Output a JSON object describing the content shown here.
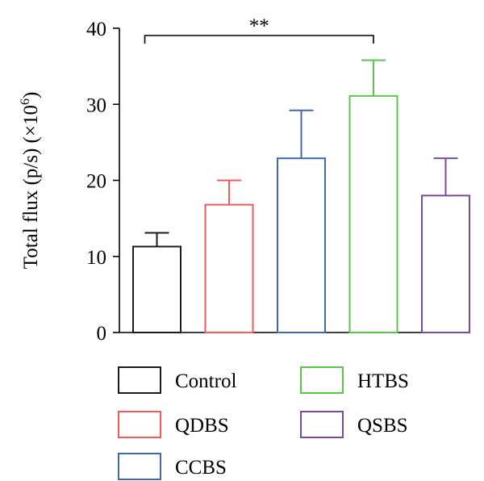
{
  "chart_data": {
    "type": "bar",
    "title": "",
    "ylabel_main": "Total flux (p/s) (×10",
    "ylabel_sup": "6",
    "ylabel_close": ")",
    "xlabel": "",
    "ylim": [
      0,
      40
    ],
    "yticks": [
      "0",
      "10",
      "20",
      "30",
      "40"
    ],
    "grid": false,
    "legend_position": "bottom",
    "categories": [
      "Control",
      "QDBS",
      "CCBS",
      "HTBS",
      "QSBS"
    ],
    "values": [
      11.3,
      16.8,
      22.9,
      31.1,
      18.0
    ],
    "error_upper": [
      13.1,
      20.0,
      29.2,
      35.8,
      22.9
    ],
    "colors": [
      "#1a1a1a",
      "#f05a5a",
      "#4466b0",
      "#5cc44e",
      "#7a4aa0"
    ],
    "significance": {
      "label": "**",
      "from": "Control",
      "to": "HTBS"
    }
  }
}
